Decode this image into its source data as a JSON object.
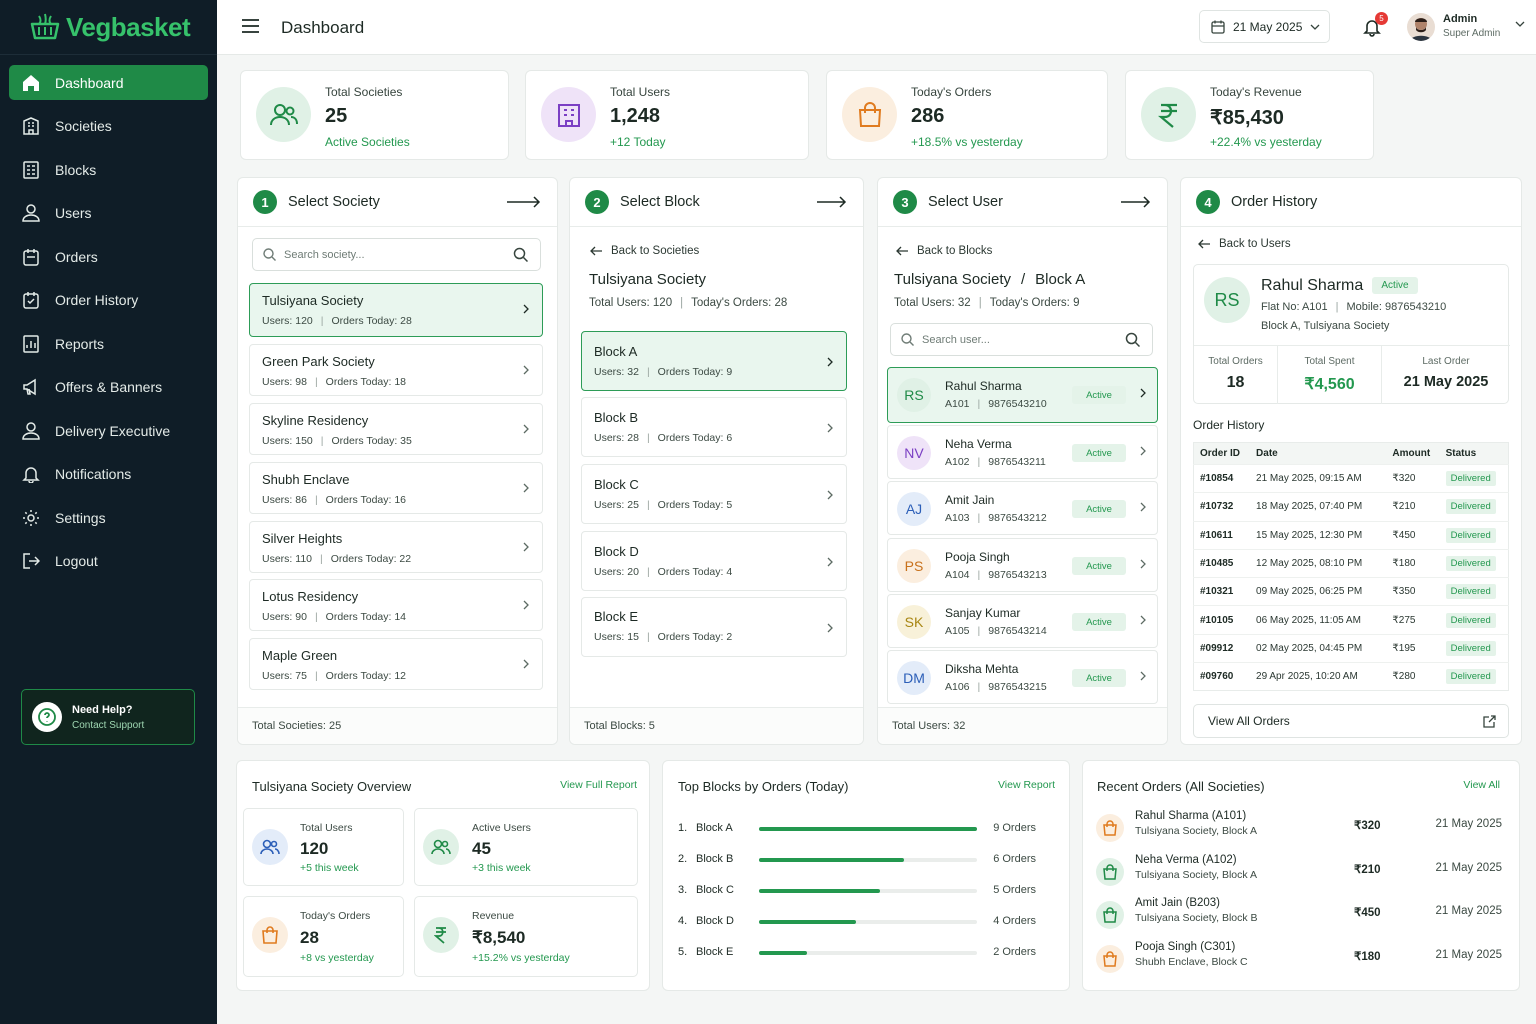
{
  "brand": {
    "name": "Vegbasket",
    "color": "#36c26b"
  },
  "colors": {
    "primary": "#1f8a47",
    "sidebar": "#0f1d27",
    "success": "#23984f"
  },
  "sidebar": {
    "items": [
      {
        "label": "Dashboard",
        "icon": "home-icon",
        "active": true
      },
      {
        "label": "Societies",
        "icon": "building-icon"
      },
      {
        "label": "Blocks",
        "icon": "blocks-icon"
      },
      {
        "label": "Users",
        "icon": "user-icon"
      },
      {
        "label": "Orders",
        "icon": "orders-icon"
      },
      {
        "label": "Order History",
        "icon": "history-icon"
      },
      {
        "label": "Reports",
        "icon": "reports-icon"
      },
      {
        "label": "Offers & Banners",
        "icon": "megaphone-icon"
      },
      {
        "label": "Delivery Executive",
        "icon": "delivery-icon"
      },
      {
        "label": "Notifications",
        "icon": "bell-icon"
      },
      {
        "label": "Settings",
        "icon": "gear-icon"
      },
      {
        "label": "Logout",
        "icon": "logout-icon"
      }
    ],
    "help": {
      "title": "Need Help?",
      "link": "Contact Support"
    }
  },
  "topbar": {
    "title": "Dashboard",
    "date": "21 May 2025",
    "notifications": "5",
    "admin_name": "Admin",
    "admin_role": "Super Admin"
  },
  "stats": [
    {
      "label": "Total Societies",
      "value": "25",
      "sub": "Active Societies",
      "icon": "users-icon",
      "color": "#1f8a47"
    },
    {
      "label": "Total Users",
      "value": "1,248",
      "sub": "+12 Today",
      "icon": "building-icon",
      "color": "#7b3fc4"
    },
    {
      "label": "Today's Orders",
      "value": "286",
      "sub": "+18.5% vs yesterday",
      "icon": "bag-icon",
      "color": "#e07b1f"
    },
    {
      "label": "Today's Revenue",
      "value": "₹85,430",
      "sub": "+22.4% vs yesterday",
      "icon": "rupee-icon",
      "color": "#1f8a47"
    }
  ],
  "society_panel": {
    "step": "1",
    "title": "Select Society",
    "search_placeholder": "Search society...",
    "items": [
      {
        "name": "Tulsiyana Society",
        "users": "Users:  120",
        "orders": "Orders Today:  28"
      },
      {
        "name": "Green Park Society",
        "users": "Users:  98",
        "orders": "Orders Today:  18"
      },
      {
        "name": "Skyline Residency",
        "users": "Users:  150",
        "orders": "Orders Today:  35"
      },
      {
        "name": "Shubh Enclave",
        "users": "Users:  86",
        "orders": "Orders Today:  16"
      },
      {
        "name": "Silver Heights",
        "users": "Users:  110",
        "orders": "Orders Today:  22"
      },
      {
        "name": "Lotus Residency",
        "users": "Users:  90",
        "orders": "Orders Today:  14"
      },
      {
        "name": "Maple Green",
        "users": "Users:  75",
        "orders": "Orders Today:  12"
      }
    ],
    "footer": "Total Societies:  25"
  },
  "block_panel": {
    "step": "2",
    "title": "Select Block",
    "back": "Back to Societies",
    "society": "Tulsiyana Society",
    "meta_users": "Total Users:  120",
    "meta_orders": "Today's Orders:  28",
    "items": [
      {
        "name": "Block A",
        "users": "Users:  32",
        "orders": "Orders Today:  9"
      },
      {
        "name": "Block B",
        "users": "Users:  28",
        "orders": "Orders Today:  6"
      },
      {
        "name": "Block C",
        "users": "Users:  25",
        "orders": "Orders Today:  5"
      },
      {
        "name": "Block D",
        "users": "Users:  20",
        "orders": "Orders Today:  4"
      },
      {
        "name": "Block E",
        "users": "Users:  15",
        "orders": "Orders Today:  2"
      }
    ],
    "footer": "Total Blocks:  5"
  },
  "user_panel": {
    "step": "3",
    "title": "Select User",
    "back": "Back to Blocks",
    "heading_society": "Tulsiyana Society",
    "heading_sep": "/",
    "heading_block": "Block A",
    "meta_users": "Total Users:  32",
    "meta_orders": "Today's Orders:  9",
    "search_placeholder": "Search user...",
    "items": [
      {
        "initials": "RS",
        "name": "Rahul Sharma",
        "flat": "A101",
        "phone": "9876543210",
        "status": "Active",
        "bg": "#e0f1e6",
        "fg": "#1f8a47"
      },
      {
        "initials": "NV",
        "name": "Neha Verma",
        "flat": "A102",
        "phone": "9876543211",
        "status": "Active",
        "bg": "#efe3f8",
        "fg": "#7b3fc4"
      },
      {
        "initials": "AJ",
        "name": "Amit Jain",
        "flat": "A103",
        "phone": "9876543212",
        "status": "Active",
        "bg": "#e3ecf9",
        "fg": "#2c5fb8"
      },
      {
        "initials": "PS",
        "name": "Pooja Singh",
        "flat": "A104",
        "phone": "9876543213",
        "status": "Active",
        "bg": "#fbeedf",
        "fg": "#c8711c"
      },
      {
        "initials": "SK",
        "name": "Sanjay Kumar",
        "flat": "A105",
        "phone": "9876543214",
        "status": "Active",
        "bg": "#f8f1d9",
        "fg": "#a88612"
      },
      {
        "initials": "DM",
        "name": "Diksha Mehta",
        "flat": "A106",
        "phone": "9876543215",
        "status": "Active",
        "bg": "#e3ecf9",
        "fg": "#2c5fb8"
      }
    ],
    "footer": "Total Users:  32"
  },
  "history_panel": {
    "step": "4",
    "title": "Order History",
    "back": "Back to Users",
    "profile": {
      "initials": "RS",
      "name": "Rahul Sharma",
      "status": "Active",
      "flat": "Flat No: A101",
      "mobile": "Mobile: 9876543210",
      "address": "Block A, Tulsiyana Society",
      "total_orders_label": "Total Orders",
      "total_orders": "18",
      "total_spent_label": "Total Spent",
      "total_spent": "₹4,560",
      "last_order_label": "Last Order",
      "last_order": "21 May 2025"
    },
    "table_title": "Order History",
    "columns": [
      "Order ID",
      "Date",
      "Amount",
      "Status"
    ],
    "rows": [
      {
        "id": "#10854",
        "date": "21 May 2025, 09:15 AM",
        "amount": "₹320",
        "status": "Delivered"
      },
      {
        "id": "#10732",
        "date": "18 May 2025, 07:40 PM",
        "amount": "₹210",
        "status": "Delivered"
      },
      {
        "id": "#10611",
        "date": "15 May 2025, 12:30 PM",
        "amount": "₹450",
        "status": "Delivered"
      },
      {
        "id": "#10485",
        "date": "12 May 2025, 08:10 PM",
        "amount": "₹180",
        "status": "Delivered"
      },
      {
        "id": "#10321",
        "date": "09 May 2025, 06:25 PM",
        "amount": "₹350",
        "status": "Delivered"
      },
      {
        "id": "#10105",
        "date": "06 May 2025, 11:05 AM",
        "amount": "₹275",
        "status": "Delivered"
      },
      {
        "id": "#09912",
        "date": "02 May 2025, 04:45 PM",
        "amount": "₹195",
        "status": "Delivered"
      },
      {
        "id": "#09760",
        "date": "29 Apr 2025, 10:20 AM",
        "amount": "₹280",
        "status": "Delivered"
      }
    ],
    "view_all": "View All Orders"
  },
  "overview": {
    "title": "Tulsiyana Society Overview",
    "link": "View Full Report",
    "cards": [
      {
        "label": "Total Users",
        "value": "120",
        "sub": "+5 this week",
        "icon": "users-icon",
        "bg": "#e3ecf9",
        "fg": "#2c5fb8"
      },
      {
        "label": "Active Users",
        "value": "45",
        "sub": "+3 this week",
        "icon": "users-icon",
        "bg": "#e0f1e6",
        "fg": "#1f8a47"
      },
      {
        "label": "Today's Orders",
        "value": "28",
        "sub": "+8 vs yesterday",
        "icon": "bag-icon",
        "bg": "#fbeedf",
        "fg": "#e07b1f"
      },
      {
        "label": "Revenue",
        "value": "₹8,540",
        "sub": "+15.2% vs yesterday",
        "icon": "rupee-icon",
        "bg": "#e0f1e6",
        "fg": "#1f8a47"
      }
    ]
  },
  "top_blocks": {
    "title": "Top Blocks by Orders (Today)",
    "link": "View Report",
    "max": 9,
    "items": [
      {
        "rank": "1.",
        "name": "Block A",
        "value": 9,
        "label": "9 Orders"
      },
      {
        "rank": "2.",
        "name": "Block B",
        "value": 6,
        "label": "6 Orders"
      },
      {
        "rank": "3.",
        "name": "Block C",
        "value": 5,
        "label": "5 Orders"
      },
      {
        "rank": "4.",
        "name": "Block D",
        "value": 4,
        "label": "4 Orders"
      },
      {
        "rank": "5.",
        "name": "Block E",
        "value": 2,
        "label": "2 Orders"
      }
    ]
  },
  "recent_orders": {
    "title": "Recent Orders (All Societies)",
    "link": "View All",
    "items": [
      {
        "name": "Rahul Sharma (A101)",
        "location": "Tulsiyana Society, Block A",
        "amount": "₹320",
        "date": "21 May 2025",
        "bg": "#fbeedf",
        "fg": "#e07b1f"
      },
      {
        "name": "Neha Verma (A102)",
        "location": "Tulsiyana Society, Block A",
        "amount": "₹210",
        "date": "21 May 2025",
        "bg": "#e0f1e6",
        "fg": "#1f8a47"
      },
      {
        "name": "Amit Jain (B203)",
        "location": "Tulsiyana Society, Block B",
        "amount": "₹450",
        "date": "21 May 2025",
        "bg": "#e0f1e6",
        "fg": "#1f8a47"
      },
      {
        "name": "Pooja Singh (C301)",
        "location": "Shubh Enclave, Block C",
        "amount": "₹180",
        "date": "21 May 2025",
        "bg": "#fbeedf",
        "fg": "#e07b1f"
      }
    ]
  }
}
